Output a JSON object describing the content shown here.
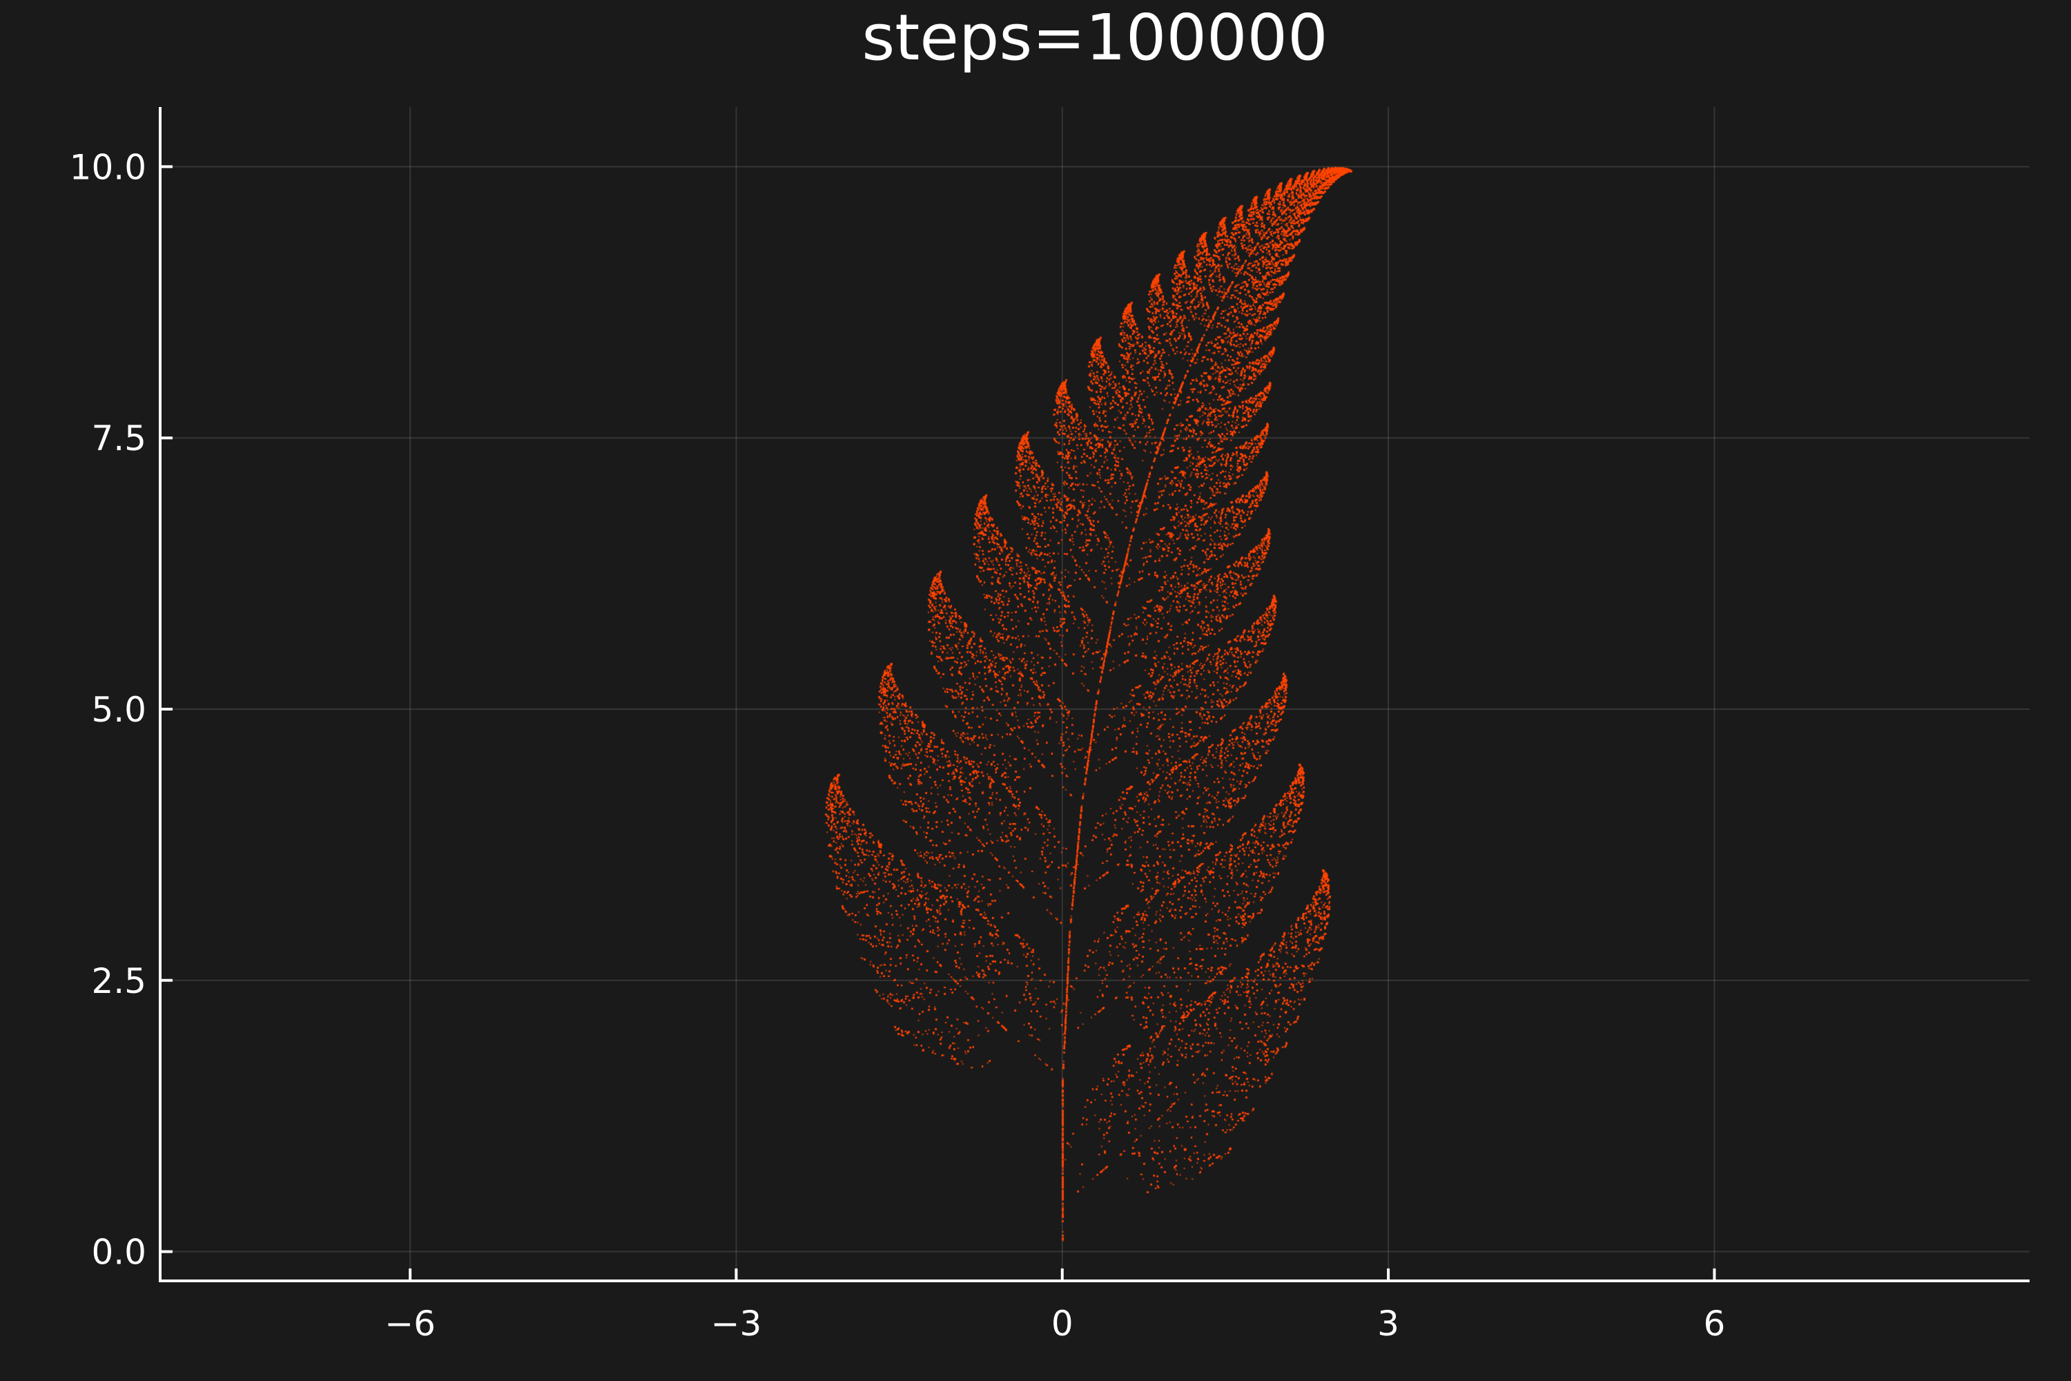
{
  "chart_data": {
    "type": "scatter",
    "title": "steps=100000",
    "xlabel": "",
    "ylabel": "",
    "xlim": [
      -8.3,
      8.9
    ],
    "ylim": [
      -0.27,
      10.55
    ],
    "xticks": [
      -6,
      -3,
      0,
      3,
      6
    ],
    "xtick_labels": [
      "−6",
      "−3",
      "0",
      "3",
      "6"
    ],
    "yticks": [
      0.0,
      2.5,
      5.0,
      7.5,
      10.0
    ],
    "ytick_labels": [
      "0.0",
      "2.5",
      "5.0",
      "7.5",
      "10.0"
    ],
    "grid": true,
    "legend": "none",
    "series": [
      {
        "generator": "barnsley-fern",
        "steps": 100000,
        "color": "#ff4500"
      }
    ],
    "colors": {
      "background": "#1a1a1a",
      "foreground": "#ffffff",
      "marker": "#ff4500"
    }
  }
}
